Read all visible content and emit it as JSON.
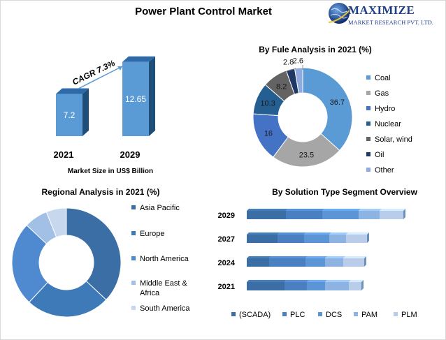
{
  "title": "Power Plant Control Market",
  "logo": {
    "name": "MAXIMIZE",
    "tagline": "MARKET RESEARCH PVT. LTD."
  },
  "colors": {
    "c1": "#3a6ea5",
    "c2": "#4a7fc1",
    "c3": "#5b95d6",
    "c4": "#8db3e2",
    "c5": "#b9cdea",
    "gray": "#a6a6a6",
    "dark": "#1f3864",
    "darkgray": "#595959"
  },
  "chart_data": [
    {
      "id": "market_size",
      "type": "bar",
      "categories": [
        "2021",
        "2029"
      ],
      "values": [
        7.2,
        12.65
      ],
      "value_labels": [
        "7.2",
        "12.65"
      ],
      "xlabel": "Market Size in US$ Billion",
      "annotation": "CAGR 7.3%"
    },
    {
      "id": "fuel",
      "type": "pie",
      "title": "By Fule Analysis in 2021 (%)",
      "labels": [
        "Coal",
        "Gas",
        "Hydro",
        "Nuclear",
        "Solar, wind",
        "Oil",
        "Other"
      ],
      "values": [
        36.7,
        23.5,
        16,
        10.3,
        8.2,
        2.8,
        2.6
      ],
      "value_labels": [
        "36.7",
        "23.5",
        "16",
        "10.3",
        "8.2",
        "2.8",
        "2.6"
      ],
      "colors": [
        "#5b9bd5",
        "#a6a6a6",
        "#4472c4",
        "#255e91",
        "#636363",
        "#1f3864",
        "#8faadc"
      ],
      "legend_position": "right"
    },
    {
      "id": "regional",
      "type": "pie",
      "title": "Regional Analysis in 2021 (%)",
      "labels": [
        "Asia Pacific",
        "Europe",
        "North America",
        "Middle East & Africa",
        "South America"
      ],
      "values": [
        37,
        25,
        25,
        7,
        6
      ],
      "colors": [
        "#3a6ea5",
        "#3f7ab8",
        "#4f8ad0",
        "#a2bfe6",
        "#c7d7ee"
      ],
      "legend_position": "right"
    },
    {
      "id": "solution",
      "type": "bar",
      "orientation": "horizontal",
      "stacked": true,
      "title": "By Solution Type Segment Overview",
      "categories": [
        "2029",
        "2027",
        "2024",
        "2021"
      ],
      "series": [
        {
          "name": "(SCADA)",
          "values": [
            56,
            44,
            32,
            54
          ],
          "color": "#3a6ea5"
        },
        {
          "name": "PLC",
          "values": [
            52,
            38,
            52,
            32
          ],
          "color": "#4a7fc1"
        },
        {
          "name": "DCS",
          "values": [
            52,
            36,
            28,
            26
          ],
          "color": "#5b95d6"
        },
        {
          "name": "PAM",
          "values": [
            30,
            24,
            26,
            34
          ],
          "color": "#8db3e2"
        },
        {
          "name": "PLM",
          "values": [
            34,
            30,
            30,
            18
          ],
          "color": "#b9cdea"
        }
      ],
      "legend_position": "bottom"
    }
  ]
}
